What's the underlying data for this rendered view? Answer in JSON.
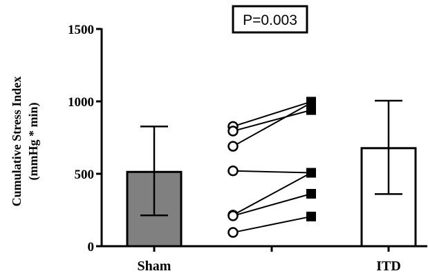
{
  "chart_data": {
    "type": "bar",
    "categories": [
      "Sham",
      "ITD"
    ],
    "bars": [
      {
        "category": "Sham",
        "mean": 513,
        "error_low": 213,
        "error_high": 827,
        "fill": "#808080"
      },
      {
        "category": "ITD",
        "mean": 677,
        "error_low": 360,
        "error_high": 1005,
        "fill": "#ffffff"
      }
    ],
    "paired_points": [
      {
        "sham": 827,
        "itd": 998
      },
      {
        "sham": 795,
        "itd": 940
      },
      {
        "sham": 690,
        "itd": 990
      },
      {
        "sham": 520,
        "itd": 507
      },
      {
        "sham": 215,
        "itd": 507
      },
      {
        "sham": 210,
        "itd": 362
      },
      {
        "sham": 95,
        "itd": 205
      }
    ],
    "sham_marker": "open-circle",
    "itd_marker": "filled-square",
    "ylabel_lines": [
      "Cumulative Stress Index",
      "(mmHg * min)"
    ],
    "ylim": [
      0,
      1500
    ],
    "yticks": [
      0,
      500,
      1000,
      1500
    ],
    "annotation": "P=0.003",
    "grid": false
  }
}
